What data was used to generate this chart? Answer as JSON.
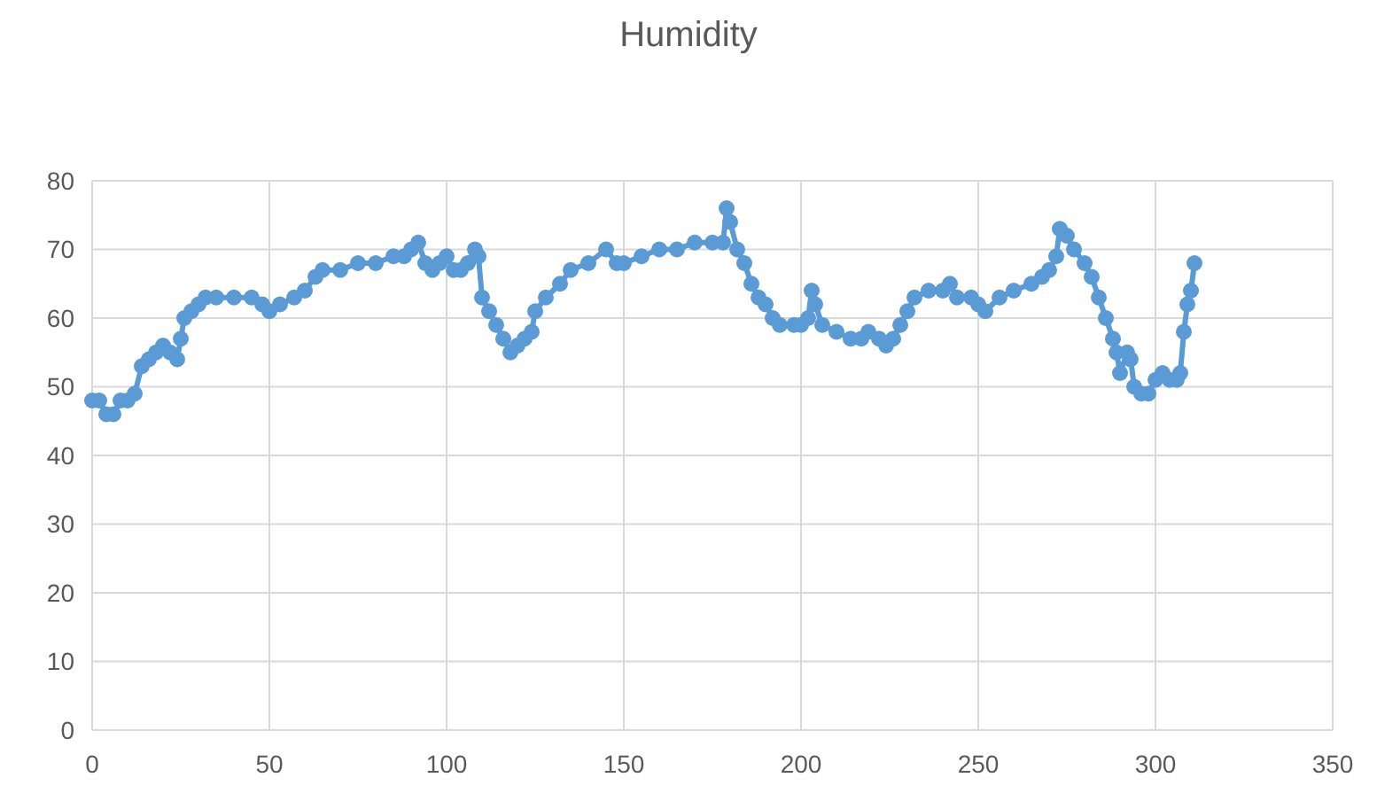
{
  "chart_data": {
    "type": "line",
    "title": "Humidity",
    "marker": "circle",
    "grid": true,
    "xlim": [
      0,
      350
    ],
    "xticks": [
      0,
      50,
      100,
      150,
      200,
      250,
      300,
      350
    ],
    "ylim": [
      0,
      80
    ],
    "yticks": [
      0,
      10,
      20,
      30,
      40,
      50,
      60,
      70,
      80
    ],
    "series": [
      {
        "color": "#5b9bd5",
        "x": [
          0,
          2,
          4,
          6,
          8,
          10,
          12,
          14,
          16,
          18,
          20,
          22,
          24,
          25,
          26,
          28,
          30,
          32,
          35,
          40,
          45,
          48,
          50,
          53,
          57,
          60,
          63,
          65,
          70,
          75,
          80,
          85,
          88,
          90,
          92,
          94,
          96,
          98,
          100,
          102,
          104,
          106,
          108,
          109,
          110,
          112,
          114,
          116,
          118,
          120,
          122,
          124,
          125,
          128,
          132,
          135,
          140,
          145,
          148,
          150,
          155,
          160,
          165,
          170,
          175,
          178,
          179,
          180,
          182,
          184,
          186,
          188,
          190,
          192,
          194,
          198,
          200,
          202,
          203,
          204,
          206,
          210,
          214,
          217,
          219,
          222,
          224,
          226,
          228,
          230,
          232,
          236,
          240,
          242,
          244,
          248,
          250,
          252,
          256,
          260,
          265,
          268,
          270,
          272,
          273,
          275,
          277,
          280,
          282,
          284,
          286,
          288,
          289,
          290,
          292,
          293,
          294,
          296,
          298,
          300,
          302,
          304,
          306,
          307,
          308,
          309,
          310,
          311
        ],
        "values": [
          48,
          48,
          46,
          46,
          48,
          48,
          49,
          53,
          54,
          55,
          56,
          55,
          54,
          57,
          60,
          61,
          62,
          63,
          63,
          63,
          63,
          62,
          61,
          62,
          63,
          64,
          66,
          67,
          67,
          68,
          68,
          69,
          69,
          70,
          71,
          68,
          67,
          68,
          69,
          67,
          67,
          68,
          70,
          69,
          63,
          61,
          59,
          57,
          55,
          56,
          57,
          58,
          61,
          63,
          65,
          67,
          68,
          70,
          68,
          68,
          69,
          70,
          70,
          71,
          71,
          71,
          76,
          74,
          70,
          68,
          65,
          63,
          62,
          60,
          59,
          59,
          59,
          60,
          64,
          62,
          59,
          58,
          57,
          57,
          58,
          57,
          56,
          57,
          59,
          61,
          63,
          64,
          64,
          65,
          63,
          63,
          62,
          61,
          63,
          64,
          65,
          66,
          67,
          69,
          73,
          72,
          70,
          68,
          66,
          63,
          60,
          57,
          55,
          52,
          55,
          54,
          50,
          49,
          49,
          51,
          52,
          51,
          51,
          52,
          58,
          62,
          64,
          68
        ]
      }
    ]
  }
}
